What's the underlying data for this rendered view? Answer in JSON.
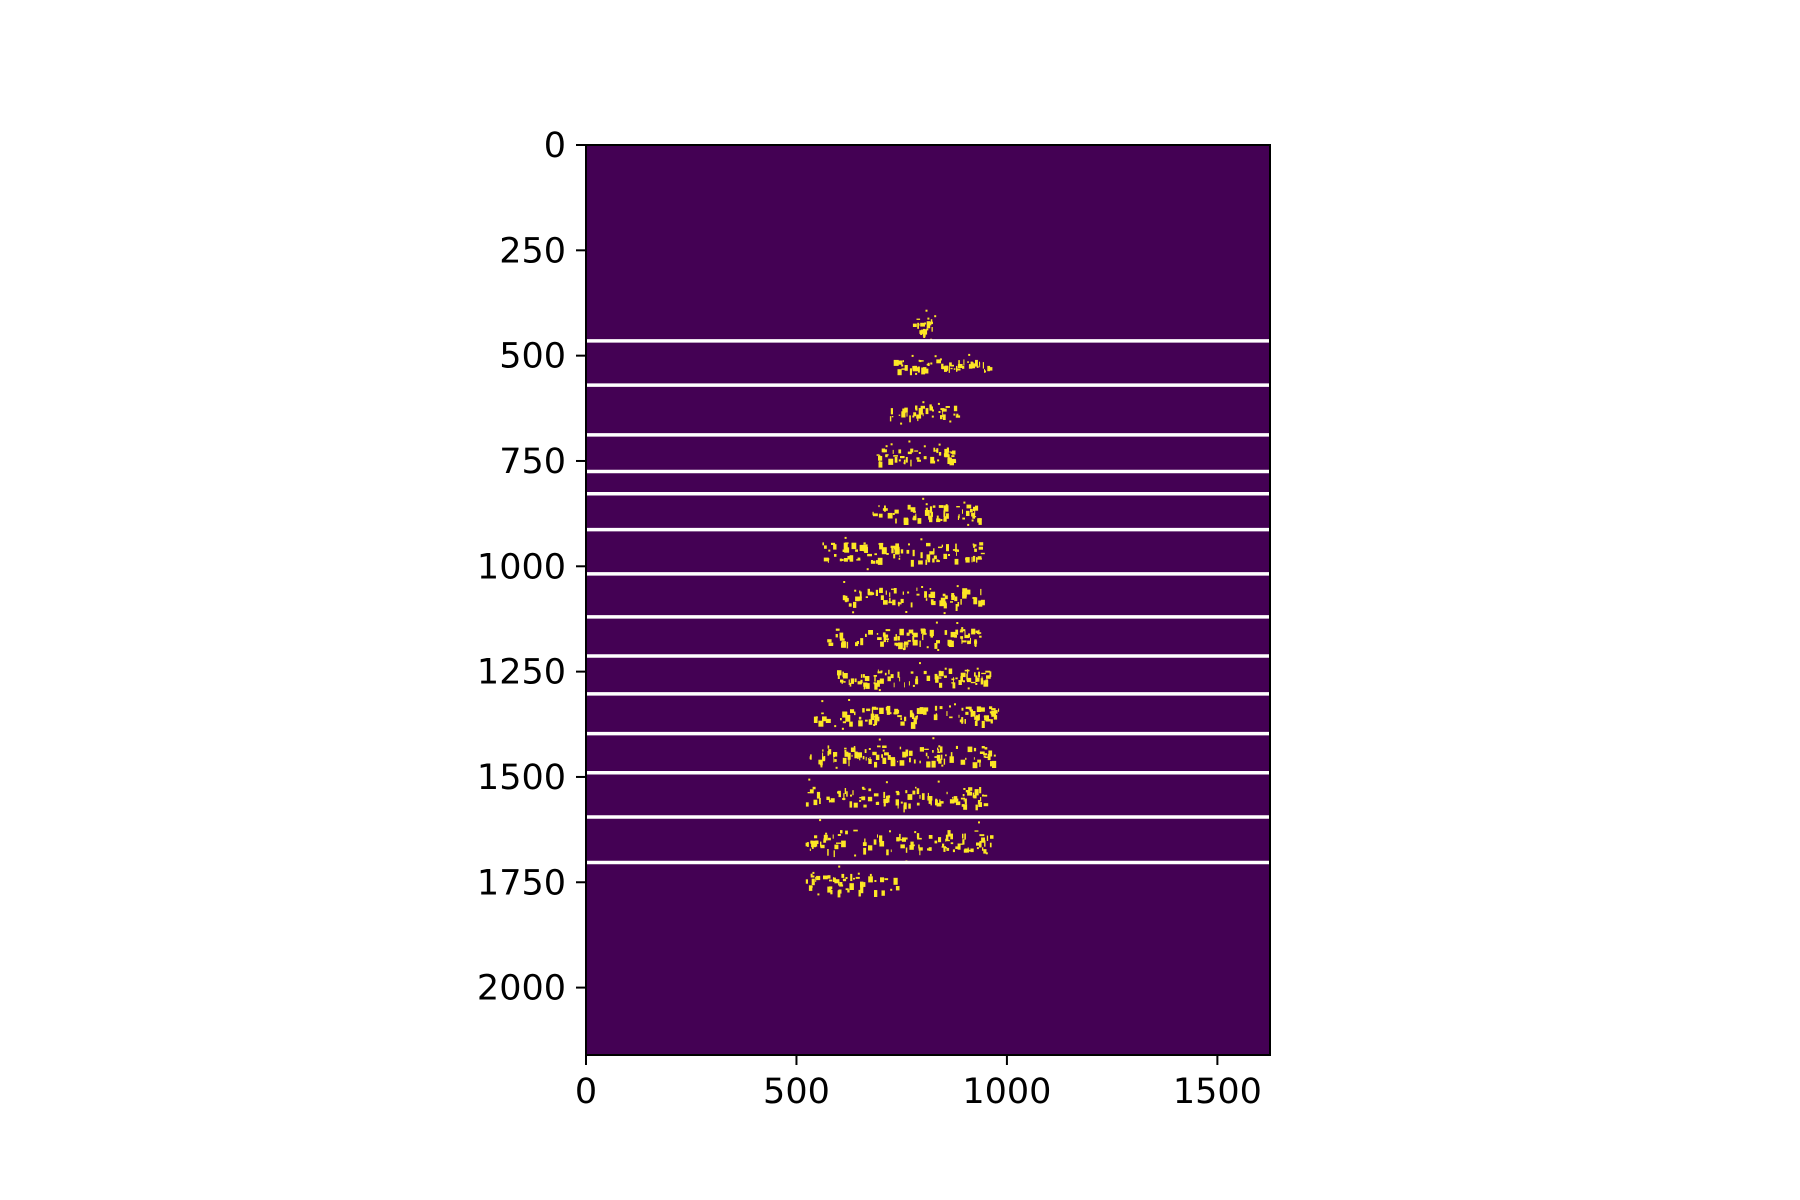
{
  "chart_data": {
    "type": "heatmap",
    "title": "",
    "xlabel": "",
    "ylabel": "",
    "xlim": [
      0,
      1625
    ],
    "ylim": [
      2160,
      0
    ],
    "x_ticks": [
      0,
      500,
      1000,
      1500
    ],
    "y_ticks": [
      0,
      250,
      500,
      750,
      1000,
      1250,
      1500,
      1750,
      2000
    ],
    "x_tick_labels": [
      "0",
      "500",
      "1000",
      "1500"
    ],
    "y_tick_labels": [
      "0",
      "250",
      "500",
      "750",
      "1000",
      "1250",
      "1500",
      "1750",
      "2000"
    ],
    "colormap": "viridis",
    "background_color": "#440154",
    "foreground_color": "#fde725",
    "line_color": "#ffffff",
    "horizontal_lines_y": [
      465,
      570,
      688,
      775,
      828,
      913,
      1018,
      1120,
      1213,
      1303,
      1397,
      1490,
      1595,
      1703
    ],
    "text_rows": [
      {
        "y": [
          390,
          460
        ],
        "x": [
          770,
          830
        ]
      },
      {
        "y": [
          495,
          545
        ],
        "x": [
          730,
          960
        ]
      },
      {
        "y": [
          600,
          660
        ],
        "x": [
          720,
          880
        ]
      },
      {
        "y": [
          700,
          770
        ],
        "x": [
          690,
          880
        ]
      },
      {
        "y": [
          835,
          905
        ],
        "x": [
          680,
          940
        ]
      },
      {
        "y": [
          920,
          1010
        ],
        "x": [
          560,
          940
        ]
      },
      {
        "y": [
          1030,
          1110
        ],
        "x": [
          610,
          940
        ]
      },
      {
        "y": [
          1130,
          1200
        ],
        "x": [
          570,
          940
        ]
      },
      {
        "y": [
          1225,
          1295
        ],
        "x": [
          590,
          960
        ]
      },
      {
        "y": [
          1310,
          1390
        ],
        "x": [
          540,
          980
        ]
      },
      {
        "y": [
          1405,
          1485
        ],
        "x": [
          530,
          970
        ]
      },
      {
        "y": [
          1500,
          1590
        ],
        "x": [
          520,
          950
        ]
      },
      {
        "y": [
          1600,
          1700
        ],
        "x": [
          520,
          960
        ]
      },
      {
        "y": [
          1710,
          1790
        ],
        "x": [
          520,
          740
        ]
      }
    ],
    "grid": false,
    "legend": "none"
  }
}
